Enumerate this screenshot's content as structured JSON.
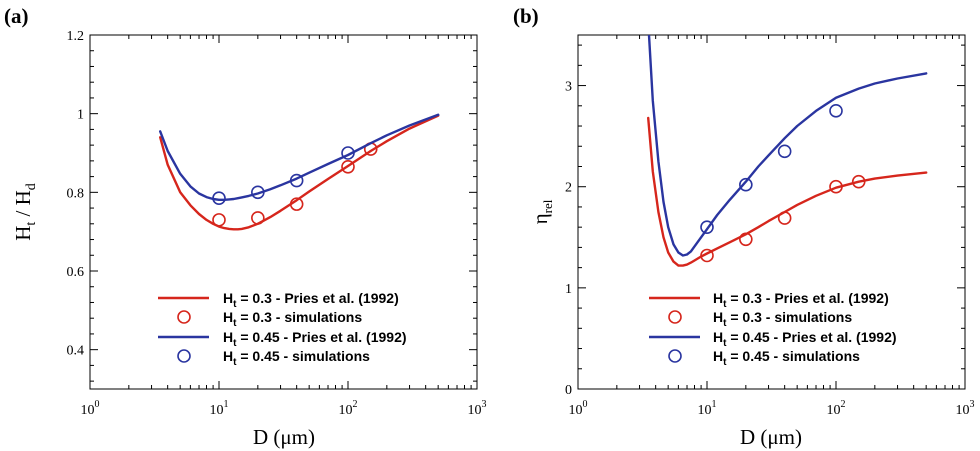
{
  "chart_data": [
    {
      "type": "line",
      "panel_label": "(a)",
      "xlabel": "D (μm)",
      "xlabel_parts": {
        "main": "D (",
        "unit": "μm",
        "close": ")"
      },
      "ylabel": "Ht / Hd",
      "ylabel_parts": {
        "a": "H",
        "a_sub": "t",
        "slash": " / ",
        "b": "H",
        "b_sub": "d"
      },
      "x_scale": "log",
      "xlim": [
        1,
        1000
      ],
      "ylim": [
        0.3,
        1.2
      ],
      "x_ticks": [
        {
          "base": "10",
          "exp": "0",
          "value": 1
        },
        {
          "base": "10",
          "exp": "1",
          "value": 10
        },
        {
          "base": "10",
          "exp": "2",
          "value": 100
        },
        {
          "base": "10",
          "exp": "3",
          "value": 1000
        }
      ],
      "y_ticks": [
        {
          "label": "0.4",
          "value": 0.4
        },
        {
          "label": "0.6",
          "value": 0.6
        },
        {
          "label": "0.8",
          "value": 0.8
        },
        {
          "label": "1",
          "value": 1.0
        },
        {
          "label": "1.2",
          "value": 1.2
        }
      ],
      "grid": false,
      "legend_position": "bottom-right",
      "series": [
        {
          "name": "Ht = 0.3 - Pries et al. (1992)",
          "legend": {
            "pre": "H",
            "sub": "t",
            "post": " = 0.3 - Pries et al. (1992)"
          },
          "kind": "line",
          "color": "#d6261c",
          "x": [
            3.5,
            4,
            5,
            6,
            7,
            8,
            9,
            10,
            11,
            12,
            13,
            14,
            15,
            17,
            20,
            25,
            30,
            40,
            50,
            70,
            100,
            150,
            200,
            300,
            500
          ],
          "y": [
            0.94,
            0.87,
            0.8,
            0.767,
            0.745,
            0.73,
            0.72,
            0.713,
            0.709,
            0.707,
            0.706,
            0.706,
            0.707,
            0.711,
            0.72,
            0.737,
            0.753,
            0.78,
            0.802,
            0.834,
            0.867,
            0.905,
            0.93,
            0.962,
            0.995
          ]
        },
        {
          "name": "Ht = 0.3 - simulations",
          "legend": {
            "pre": "H",
            "sub": "t",
            "post": " = 0.3 - simulations"
          },
          "kind": "markers",
          "color": "#d6261c",
          "x": [
            10,
            20,
            40,
            100,
            150
          ],
          "y": [
            0.73,
            0.735,
            0.77,
            0.865,
            0.91
          ]
        },
        {
          "name": "Ht = 0.45 - Pries et al. (1992)",
          "legend": {
            "pre": "H",
            "sub": "t",
            "post": " = 0.45 - Pries et al. (1992)"
          },
          "kind": "line",
          "color": "#2a35a0",
          "x": [
            3.5,
            4,
            5,
            6,
            7,
            8,
            9,
            10,
            11,
            12,
            13,
            14,
            15,
            17,
            20,
            25,
            30,
            40,
            50,
            70,
            100,
            150,
            200,
            300,
            500
          ],
          "y": [
            0.955,
            0.905,
            0.847,
            0.815,
            0.797,
            0.788,
            0.783,
            0.781,
            0.781,
            0.782,
            0.783,
            0.785,
            0.787,
            0.791,
            0.797,
            0.808,
            0.818,
            0.835,
            0.85,
            0.872,
            0.895,
            0.925,
            0.945,
            0.97,
            0.997
          ]
        },
        {
          "name": "Ht = 0.45 - simulations",
          "legend": {
            "pre": "H",
            "sub": "t",
            "post": " = 0.45 - simulations"
          },
          "kind": "markers",
          "color": "#2a35a0",
          "x": [
            10,
            20,
            40,
            100
          ],
          "y": [
            0.785,
            0.8,
            0.83,
            0.9
          ]
        }
      ]
    },
    {
      "type": "line",
      "panel_label": "(b)",
      "xlabel": "D (μm)",
      "xlabel_parts": {
        "main": "D (",
        "unit": "μm",
        "close": ")"
      },
      "ylabel": "ηrel",
      "ylabel_parts": {
        "a": "η",
        "a_sub": "rel"
      },
      "x_scale": "log",
      "xlim": [
        1,
        1000
      ],
      "ylim": [
        0,
        3.5
      ],
      "x_ticks": [
        {
          "base": "10",
          "exp": "0",
          "value": 1
        },
        {
          "base": "10",
          "exp": "1",
          "value": 10
        },
        {
          "base": "10",
          "exp": "2",
          "value": 100
        },
        {
          "base": "10",
          "exp": "3",
          "value": 1000
        }
      ],
      "y_ticks": [
        {
          "label": "0",
          "value": 0
        },
        {
          "label": "1",
          "value": 1
        },
        {
          "label": "2",
          "value": 2
        },
        {
          "label": "3",
          "value": 3
        }
      ],
      "grid": false,
      "legend_position": "bottom-right",
      "series": [
        {
          "name": "Ht = 0.3 - Pries et al. (1992)",
          "legend": {
            "pre": "H",
            "sub": "t",
            "post": " = 0.3 - Pries et al. (1992)"
          },
          "kind": "line",
          "color": "#d6261c",
          "x": [
            3.5,
            3.8,
            4.2,
            4.6,
            5,
            5.5,
            6,
            6.5,
            7,
            7.5,
            8,
            9,
            10,
            12,
            15,
            20,
            25,
            30,
            40,
            50,
            70,
            100,
            150,
            200,
            300,
            500
          ],
          "y": [
            2.68,
            2.15,
            1.75,
            1.5,
            1.35,
            1.26,
            1.22,
            1.22,
            1.23,
            1.25,
            1.27,
            1.31,
            1.34,
            1.39,
            1.45,
            1.53,
            1.6,
            1.66,
            1.75,
            1.82,
            1.91,
            1.99,
            2.05,
            2.08,
            2.11,
            2.14
          ]
        },
        {
          "name": "Ht = 0.3 - simulations",
          "legend": {
            "pre": "H",
            "sub": "t",
            "post": " = 0.3 - simulations"
          },
          "kind": "markers",
          "color": "#d6261c",
          "x": [
            10,
            20,
            40,
            100,
            150
          ],
          "y": [
            1.32,
            1.48,
            1.69,
            2.0,
            2.05
          ]
        },
        {
          "name": "Ht = 0.45 - Pries et al. (1992)",
          "legend": {
            "pre": "H",
            "sub": "t",
            "post": " = 0.45 - Pries et al. (1992)"
          },
          "kind": "line",
          "color": "#2a35a0",
          "x": [
            3.55,
            3.8,
            4.2,
            4.6,
            5,
            5.5,
            6,
            6.5,
            7,
            7.5,
            8,
            9,
            10,
            12,
            15,
            20,
            25,
            30,
            40,
            50,
            70,
            100,
            150,
            200,
            300,
            500
          ],
          "y": [
            3.5,
            2.85,
            2.25,
            1.85,
            1.6,
            1.43,
            1.35,
            1.32,
            1.33,
            1.36,
            1.41,
            1.5,
            1.58,
            1.72,
            1.87,
            2.05,
            2.2,
            2.31,
            2.48,
            2.6,
            2.75,
            2.88,
            2.97,
            3.02,
            3.07,
            3.12
          ]
        },
        {
          "name": "Ht = 0.45 - simulations",
          "legend": {
            "pre": "H",
            "sub": "t",
            "post": " = 0.45 - simulations"
          },
          "kind": "markers",
          "color": "#2a35a0",
          "x": [
            10,
            20,
            40,
            100
          ],
          "y": [
            1.6,
            2.02,
            2.35,
            2.75
          ]
        }
      ]
    }
  ]
}
